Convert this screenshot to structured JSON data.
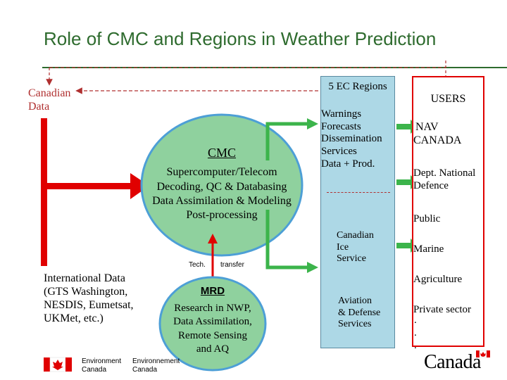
{
  "title": "Role of CMC and Regions in Weather Prediction",
  "canadian_data": [
    "Canadian",
    "Data"
  ],
  "international_data": [
    "International Data",
    "(GTS Washington,",
    "NESDIS, Eumetsat,",
    "UKMet, etc.)"
  ],
  "cmc": {
    "title": "CMC",
    "lines": [
      "Supercomputer/Telecom",
      "Decoding, QC & Databasing",
      "Data Assimilation & Modeling",
      "Post-processing"
    ]
  },
  "tech_transfer": {
    "left": "Tech.",
    "right": "transfer"
  },
  "mrd": {
    "title": "MRD",
    "lines": [
      "Research in NWP,",
      "Data Assimilation,",
      "Remote Sensing",
      "and AQ"
    ]
  },
  "regions": {
    "title": "5 EC Regions",
    "lines": [
      "Warnings",
      "Forecasts",
      "Dissemination",
      "Services",
      "Data + Prod."
    ],
    "canadian_ice": [
      "Canadian",
      "Ice",
      "Service"
    ],
    "aviation": [
      "Aviation",
      "& Defense",
      "Services"
    ]
  },
  "users": {
    "title": "USERS",
    "items": [
      [
        "NAV",
        "CANADA"
      ],
      [
        "Dept. National",
        "Defence"
      ],
      [
        "Public"
      ],
      [
        "Marine"
      ],
      [
        "Agriculture"
      ],
      [
        "Private sector"
      ]
    ],
    "dots": [
      ".",
      ".",
      "."
    ]
  },
  "footer": {
    "env_left": [
      "Environment",
      "Canada"
    ],
    "env_right": [
      "Environnement",
      "Canada"
    ],
    "canada_wordmark": "Canada"
  },
  "colors": {
    "title_green": "#2e6b2e",
    "arrow_green": "#3cb44b",
    "ellipse_fill": "#8fd19e",
    "regions_fill": "#add8e6",
    "red": "#e00000",
    "dashed": "#b03030"
  },
  "icons": [
    "maple-leaf-icon",
    "flag-icon"
  ]
}
